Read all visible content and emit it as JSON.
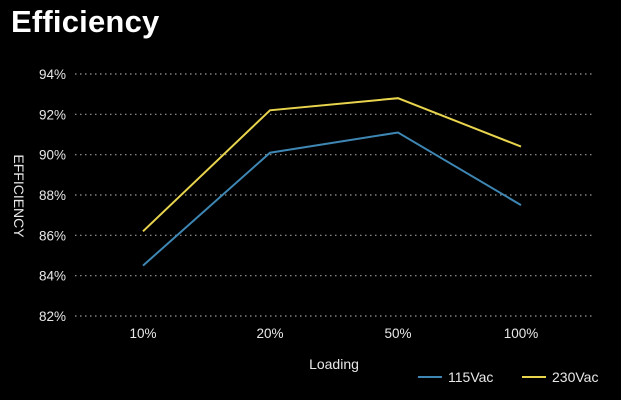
{
  "chart_data": {
    "type": "line",
    "title": "Efficiency",
    "xlabel": "Loading",
    "ylabel": "EFFICIENCY",
    "categories": [
      "10%",
      "20%",
      "50%",
      "100%"
    ],
    "yticks": [
      "82%",
      "84%",
      "86%",
      "88%",
      "90%",
      "92%",
      "94%"
    ],
    "ylim": [
      82,
      94
    ],
    "grid": true,
    "legend_position": "bottom-right",
    "series": [
      {
        "name": "115Vac",
        "values": [
          84.5,
          90.1,
          91.1,
          87.5
        ],
        "color": "#3e86b3"
      },
      {
        "name": "230Vac",
        "values": [
          86.2,
          92.2,
          92.8,
          90.4
        ],
        "color": "#e8d44d"
      }
    ]
  }
}
